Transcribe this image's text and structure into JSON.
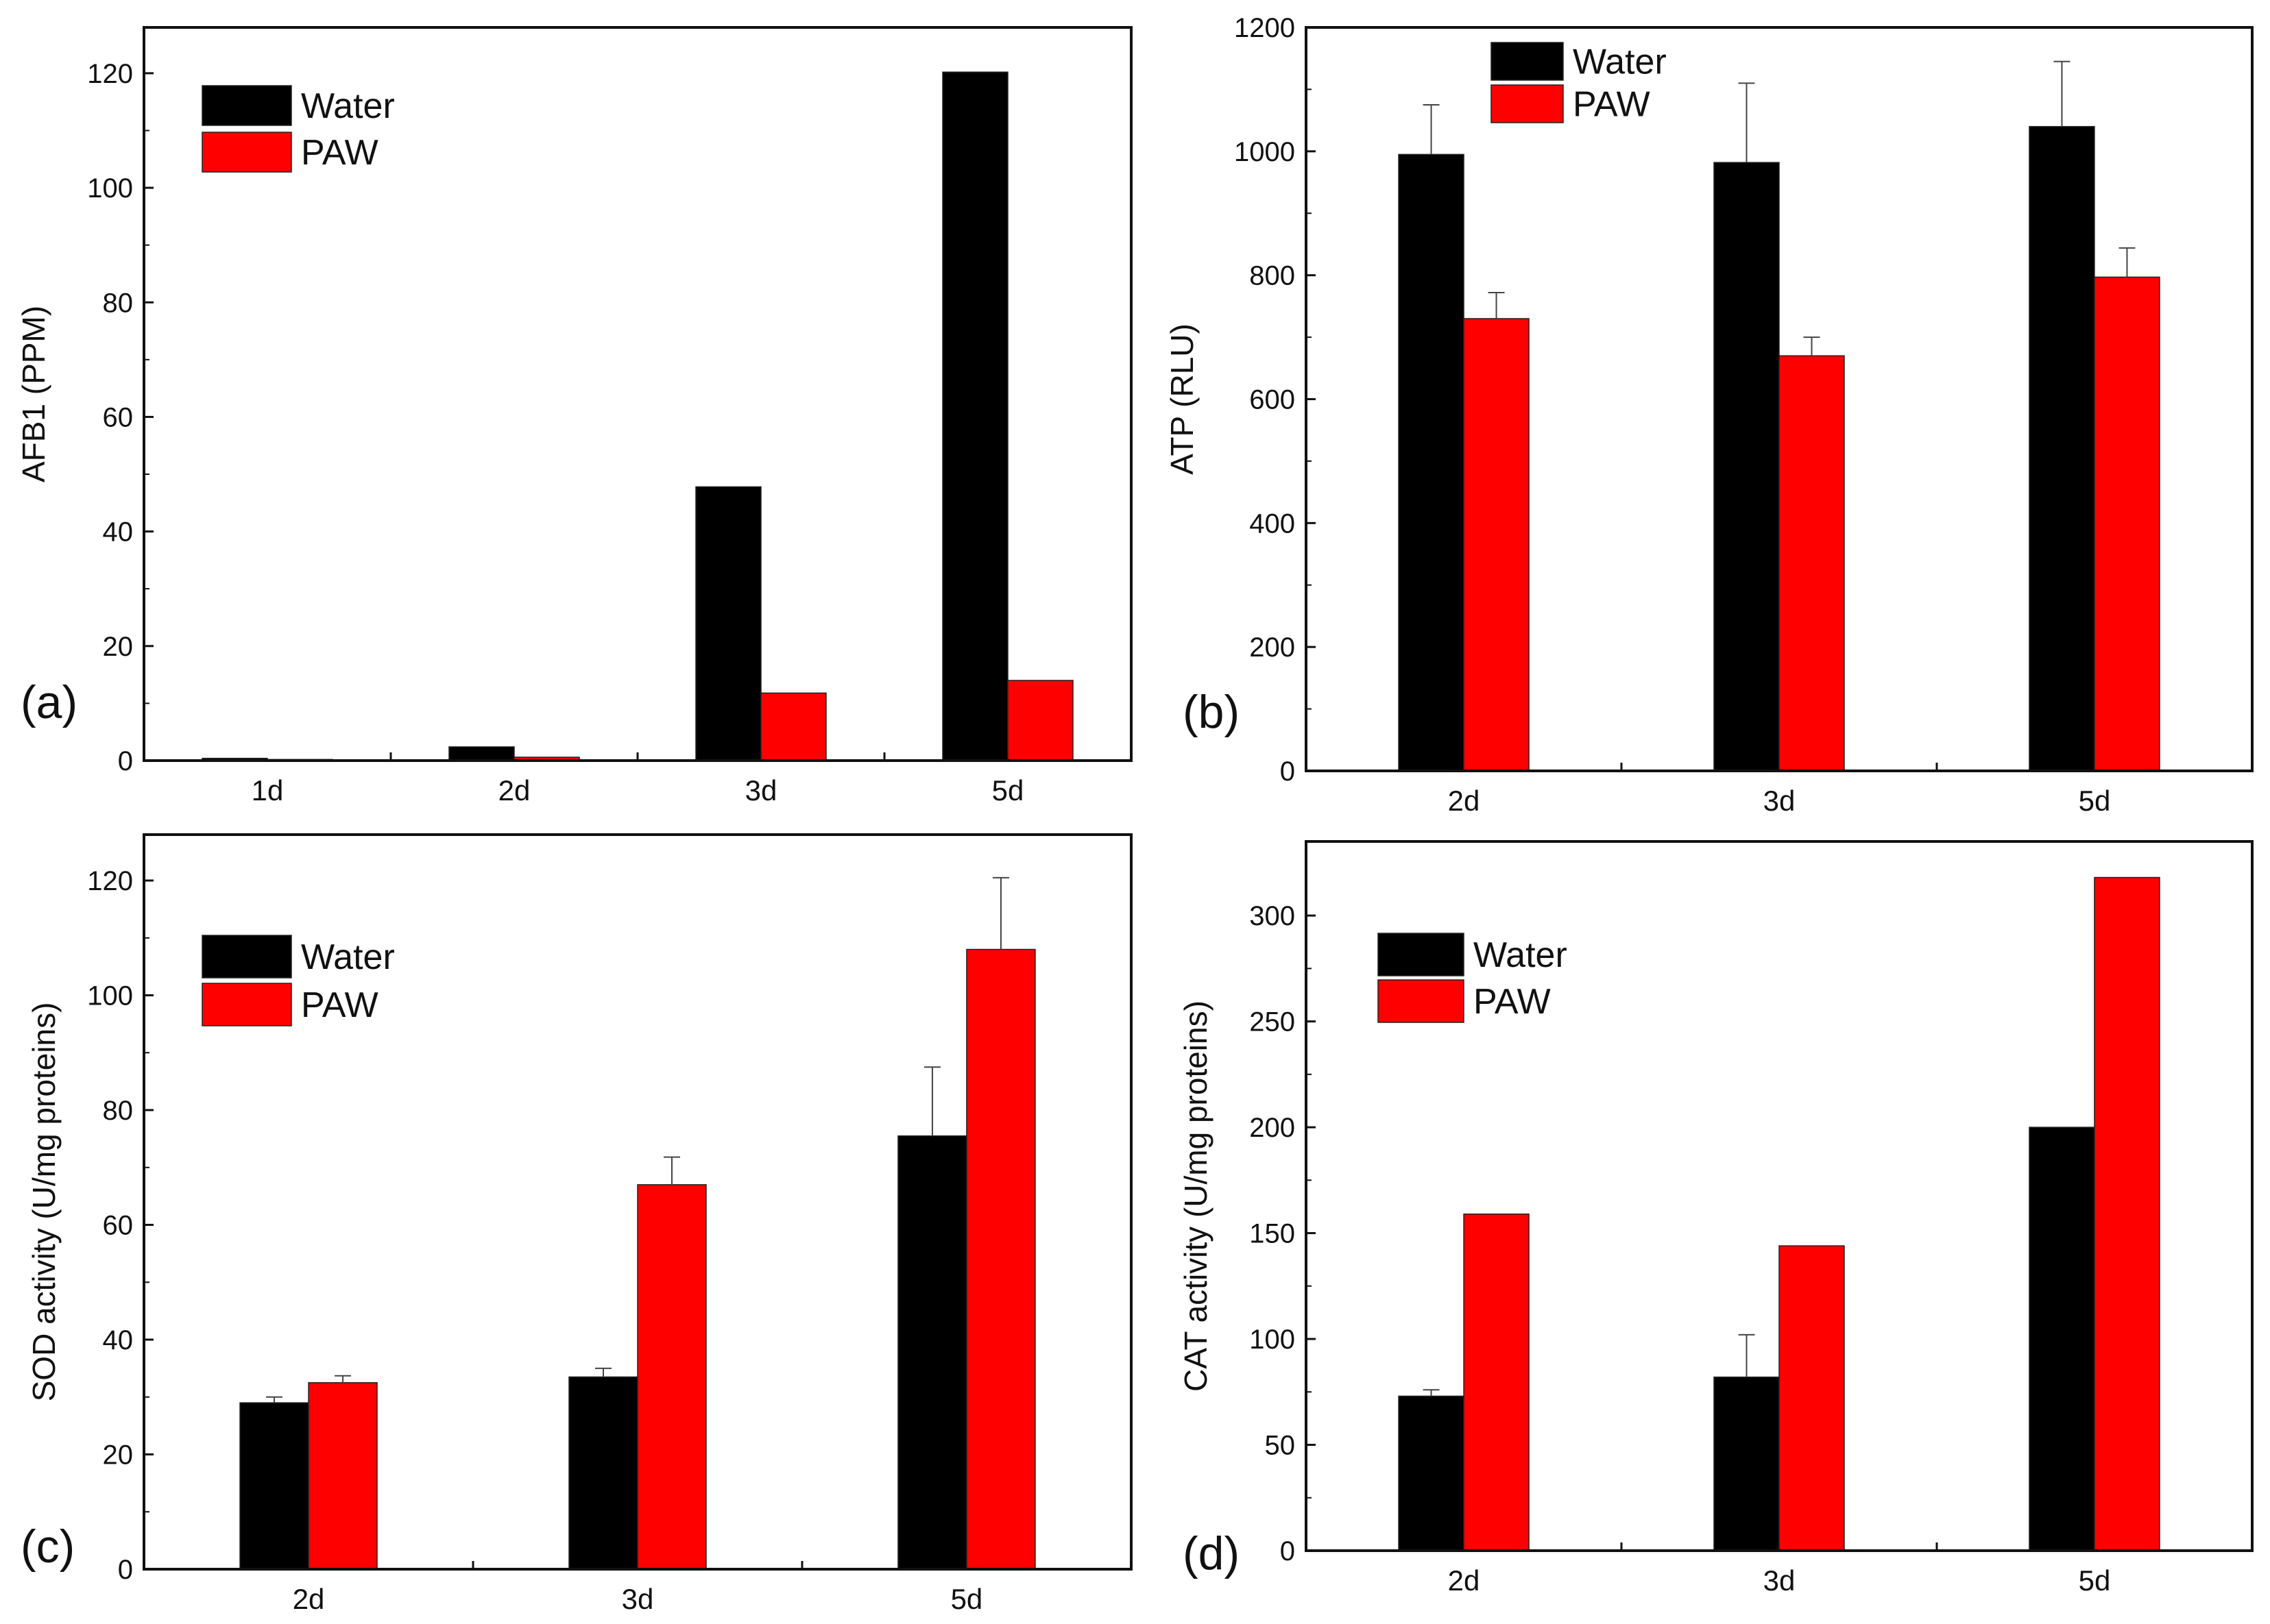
{
  "colors": {
    "water": "#000000",
    "paw": "#ff0000",
    "axis": "#111111"
  },
  "chart_data": [
    {
      "panel_label": "(a)",
      "type": "bar",
      "ylabel": "AFB1 (PPM)",
      "xlabel": "",
      "categories": [
        "1d",
        "2d",
        "3d",
        "5d"
      ],
      "ylim": [
        0,
        128
      ],
      "yticks": [
        0,
        20,
        40,
        60,
        80,
        100,
        120
      ],
      "legend_position": "top-left",
      "series": [
        {
          "name": "Water",
          "color": "#000000",
          "values": [
            0.4,
            2.4,
            47.8,
            120.2
          ],
          "errors": [
            0,
            0,
            0,
            0
          ]
        },
        {
          "name": "PAW",
          "color": "#ff0000",
          "values": [
            0.2,
            0.6,
            11.8,
            14.0
          ],
          "errors": [
            0,
            0,
            0,
            0
          ]
        }
      ]
    },
    {
      "panel_label": "(b)",
      "type": "bar",
      "ylabel": "ATP (RLU)",
      "xlabel": "",
      "categories": [
        "2d",
        "3d",
        "5d"
      ],
      "ylim": [
        0,
        1200
      ],
      "yticks": [
        0,
        200,
        400,
        600,
        800,
        1000,
        1200
      ],
      "legend_position": "top-left",
      "series": [
        {
          "name": "Water",
          "color": "#000000",
          "values": [
            995,
            982,
            1040
          ],
          "errors": [
            80,
            128,
            105
          ]
        },
        {
          "name": "PAW",
          "color": "#ff0000",
          "values": [
            730,
            670,
            797
          ],
          "errors": [
            42,
            30,
            47
          ]
        }
      ]
    },
    {
      "panel_label": "(c)",
      "type": "bar",
      "ylabel": "SOD activity (U/mg proteins)",
      "xlabel": "",
      "categories": [
        "2d",
        "3d",
        "5d"
      ],
      "ylim": [
        0,
        128
      ],
      "yticks": [
        0,
        20,
        40,
        60,
        80,
        100,
        120
      ],
      "legend_position": "top-left",
      "series": [
        {
          "name": "Water",
          "color": "#000000",
          "values": [
            29,
            33.5,
            75.5
          ],
          "errors": [
            1.0,
            1.5,
            12.0
          ]
        },
        {
          "name": "PAW",
          "color": "#ff0000",
          "values": [
            32.5,
            67,
            108
          ],
          "errors": [
            1.2,
            4.8,
            12.5
          ]
        }
      ]
    },
    {
      "panel_label": "(d)",
      "type": "bar",
      "ylabel": "CAT activity (U/mg proteins)",
      "xlabel": "",
      "categories": [
        "2d",
        "3d",
        "5d"
      ],
      "ylim": [
        0,
        335
      ],
      "yticks": [
        0,
        50,
        100,
        150,
        200,
        250,
        300
      ],
      "legend_position": "top-left",
      "series": [
        {
          "name": "Water",
          "color": "#000000",
          "values": [
            73,
            82,
            200
          ],
          "errors": [
            3,
            20,
            0
          ]
        },
        {
          "name": "PAW",
          "color": "#ff0000",
          "values": [
            159,
            144,
            318
          ],
          "errors": [
            0,
            0,
            0
          ]
        }
      ]
    }
  ]
}
